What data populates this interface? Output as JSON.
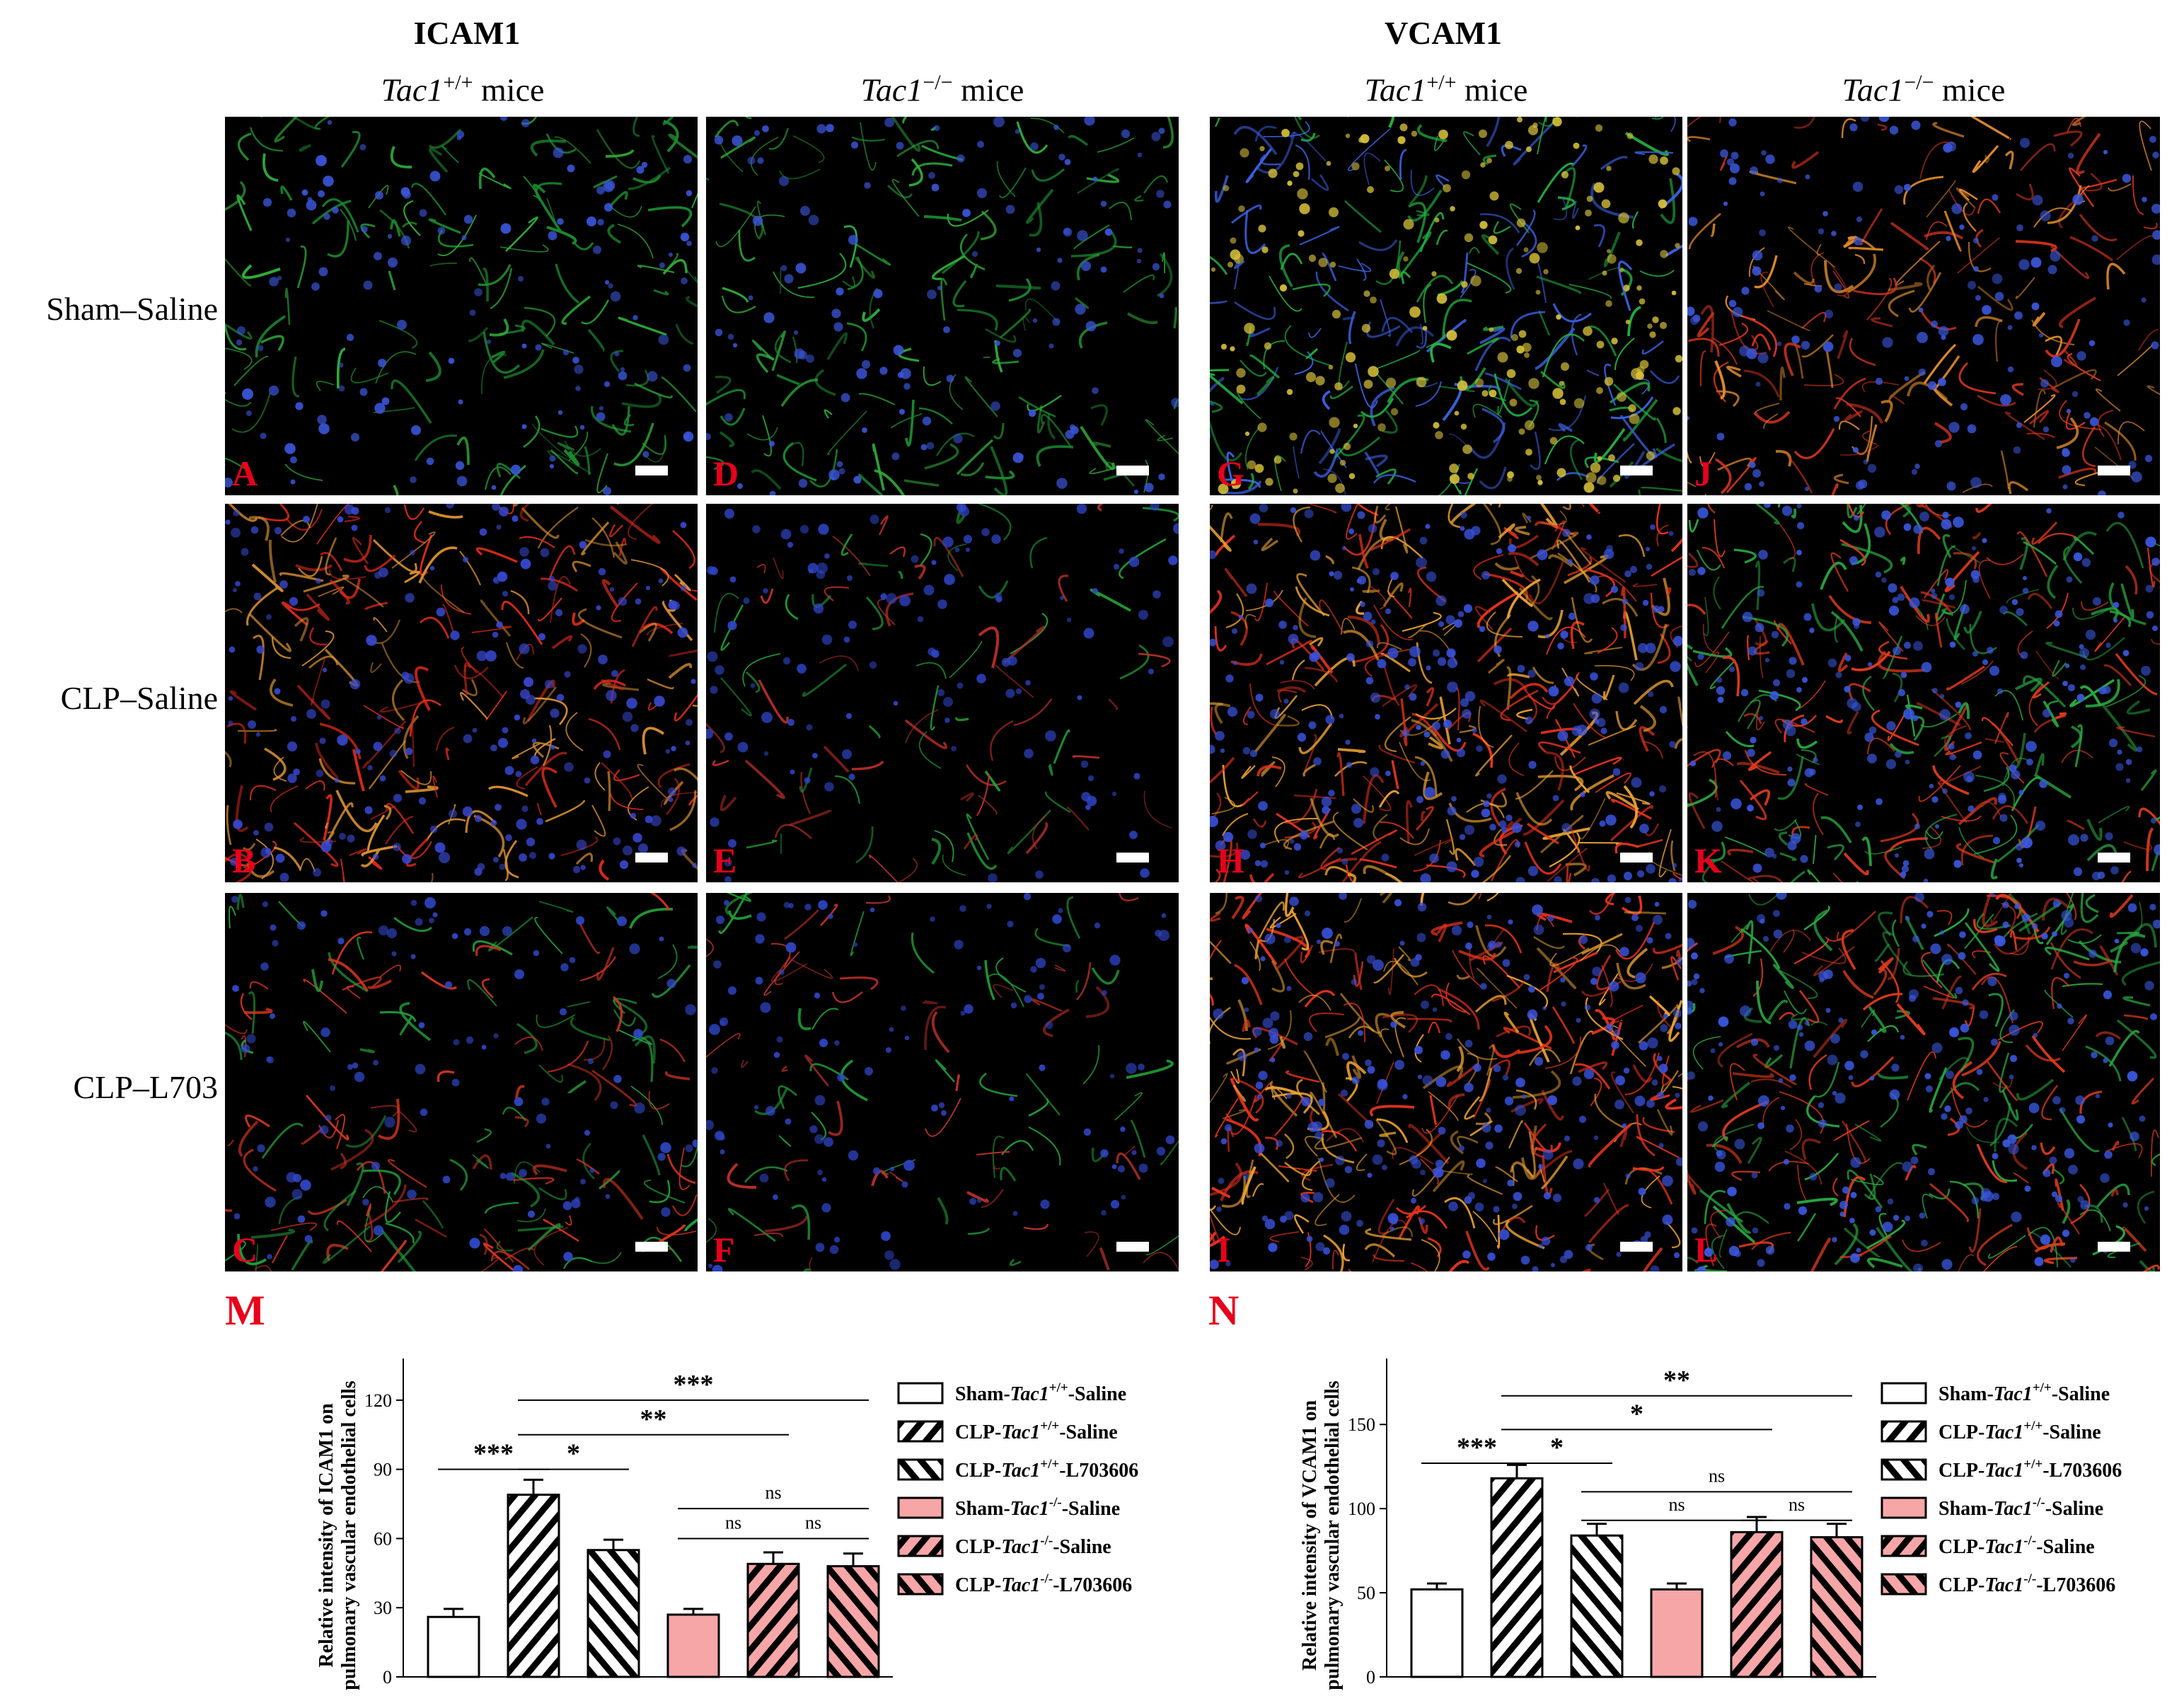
{
  "markers": {
    "left": "ICAM1",
    "right": "VCAM1"
  },
  "col_heads": [
    {
      "gene": "Tac1",
      "sup": "+/+",
      "suffix": " mice"
    },
    {
      "gene": "Tac1",
      "sup": "−/−",
      "suffix": " mice"
    },
    {
      "gene": "Tac1",
      "sup": "+/+",
      "suffix": " mice"
    },
    {
      "gene": "Tac1",
      "sup": "−/−",
      "suffix": " mice"
    }
  ],
  "row_labels": [
    "Sham–Saline",
    "CLP–Saline",
    "CLP–L703"
  ],
  "panel_labels": [
    "A",
    "D",
    "G",
    "J",
    "B",
    "E",
    "H",
    "K",
    "C",
    "F",
    "I",
    "L"
  ],
  "panel_styles": [
    "green",
    "green",
    "green-dense",
    "red-thin",
    "red",
    "green-sparse",
    "red-dense",
    "mixed",
    "green-red",
    "green-sparse",
    "red-dense",
    "mixed"
  ],
  "colors": {
    "panel_label": "#e8001c",
    "bar_pink": "#f7a6a8",
    "bar_outline": "#000000"
  },
  "legend": [
    {
      "pre": "Sham-",
      "gene": "Tac1",
      "sup": "+/+",
      "post": "-Saline",
      "fill": "white",
      "pattern": "none"
    },
    {
      "pre": "CLP-",
      "gene": "Tac1",
      "sup": "+/+",
      "post": "-Saline",
      "fill": "white",
      "pattern": "fwd"
    },
    {
      "pre": "CLP-",
      "gene": "Tac1",
      "sup": "+/+",
      "post": "-L703606",
      "fill": "white",
      "pattern": "back"
    },
    {
      "pre": "Sham-",
      "gene": "Tac1",
      "sup": "-/-",
      "post": "-Saline",
      "fill": "pink",
      "pattern": "none"
    },
    {
      "pre": "CLP-",
      "gene": "Tac1",
      "sup": "-/-",
      "post": "-Saline",
      "fill": "pink",
      "pattern": "fwd"
    },
    {
      "pre": "CLP-",
      "gene": "Tac1",
      "sup": "-/-",
      "post": "-L703606",
      "fill": "pink",
      "pattern": "back"
    }
  ],
  "chart_data": [
    {
      "type": "bar",
      "letter": "M",
      "ylabel_line1": "Relative intensity of ICAM1 on",
      "ylabel_line2": "pulmonary vascular endothelial cells",
      "ylim": [
        0,
        135
      ],
      "yticks": [
        0,
        30,
        60,
        90,
        120
      ],
      "values": [
        26,
        79,
        55,
        27,
        49,
        48
      ],
      "errors": [
        3.5,
        6.5,
        4.5,
        2.5,
        5,
        5.5
      ],
      "significance": [
        {
          "from": 0,
          "to": 1,
          "y": 90,
          "label": "***"
        },
        {
          "from": 1,
          "to": 2,
          "y": 90,
          "label": "*"
        },
        {
          "from": 1,
          "to": 4,
          "y": 105,
          "label": "**"
        },
        {
          "from": 1,
          "to": 5,
          "y": 120,
          "label": "***"
        },
        {
          "from": 3,
          "to": 5,
          "y": 73,
          "label": "ns"
        },
        {
          "from": 3,
          "to": 4,
          "y": 60,
          "label": "ns"
        },
        {
          "from": 4,
          "to": 5,
          "y": 60,
          "label": "ns"
        }
      ]
    },
    {
      "type": "bar",
      "letter": "N",
      "ylabel_line1": "Relative intensity of VCAM1 on",
      "ylabel_line2": "pulmonary vascular endothelial cells",
      "ylim": [
        0,
        185
      ],
      "yticks": [
        0,
        50,
        100,
        150
      ],
      "values": [
        52,
        118,
        84,
        52,
        86,
        83
      ],
      "errors": [
        3.5,
        8,
        7,
        3.5,
        9,
        8
      ],
      "significance": [
        {
          "from": 0,
          "to": 1,
          "y": 127,
          "label": "***"
        },
        {
          "from": 1,
          "to": 2,
          "y": 127,
          "label": "*"
        },
        {
          "from": 1,
          "to": 4,
          "y": 147,
          "label": "*"
        },
        {
          "from": 1,
          "to": 5,
          "y": 167,
          "label": "**"
        },
        {
          "from": 2,
          "to": 5,
          "y": 110,
          "label": "ns"
        },
        {
          "from": 2,
          "to": 4,
          "y": 93,
          "label": "ns"
        },
        {
          "from": 4,
          "to": 5,
          "y": 93,
          "label": "ns"
        }
      ]
    }
  ]
}
